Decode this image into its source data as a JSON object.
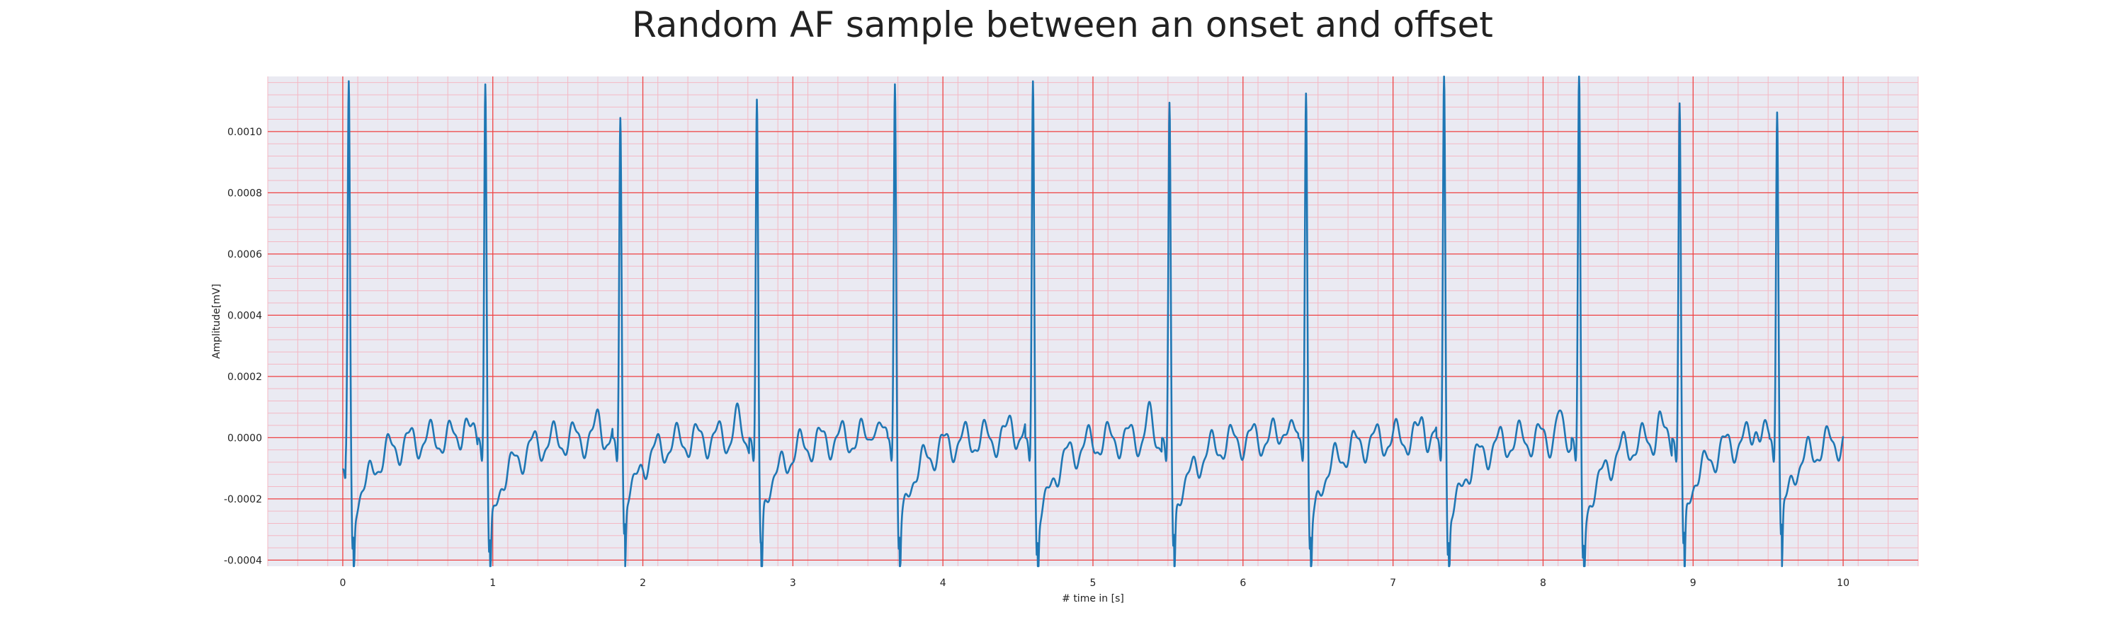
{
  "chart_data": {
    "type": "line",
    "title": "Random AF sample between an onset and offset",
    "xlabel": "# time in [s]",
    "ylabel": "Amplitude[mV]",
    "xlim": [
      -0.5,
      10.5
    ],
    "ylim": [
      -0.00042,
      0.00118
    ],
    "x_ticks": [
      0,
      1,
      2,
      3,
      4,
      5,
      6,
      7,
      8,
      9,
      10
    ],
    "y_ticks": [
      -0.0004,
      -0.0002,
      0.0,
      0.0002,
      0.0004,
      0.0006,
      0.0008,
      0.001
    ],
    "y_tick_labels": [
      "-0.0004",
      "-0.0002",
      "0.0000",
      "0.0002",
      "0.0004",
      "0.0006",
      "0.0008",
      "0.0010"
    ],
    "grid": true,
    "colors": {
      "background": "#eaeaf2",
      "major_grid": "#ee4444",
      "minor_grid": "#f4b8c4",
      "line": "#1f77b4"
    },
    "r_peaks": [
      {
        "t": 0.04,
        "peak": 0.00106,
        "trough": -0.00032
      },
      {
        "t": 0.95,
        "peak": 0.00105,
        "trough": -0.00033
      },
      {
        "t": 1.85,
        "peak": 0.00094,
        "trough": -0.00027
      },
      {
        "t": 2.76,
        "peak": 0.001,
        "trough": -0.0003
      },
      {
        "t": 3.68,
        "peak": 0.00105,
        "trough": -0.00032
      },
      {
        "t": 4.6,
        "peak": 0.00106,
        "trough": -0.00034
      },
      {
        "t": 5.51,
        "peak": 0.00099,
        "trough": -0.00031
      },
      {
        "t": 6.42,
        "peak": 0.00102,
        "trough": -0.00032
      },
      {
        "t": 7.34,
        "peak": 0.00109,
        "trough": -0.00034
      },
      {
        "t": 8.24,
        "peak": 0.0011,
        "trough": -0.00035
      },
      {
        "t": 8.91,
        "peak": 0.00099,
        "trough": -0.0003
      },
      {
        "t": 9.56,
        "peak": 0.00096,
        "trough": -0.00027
      }
    ],
    "series": [
      {
        "start": 0.0,
        "end": 10.0,
        "start_value": -0.0001,
        "end_value": 0.0
      }
    ]
  }
}
